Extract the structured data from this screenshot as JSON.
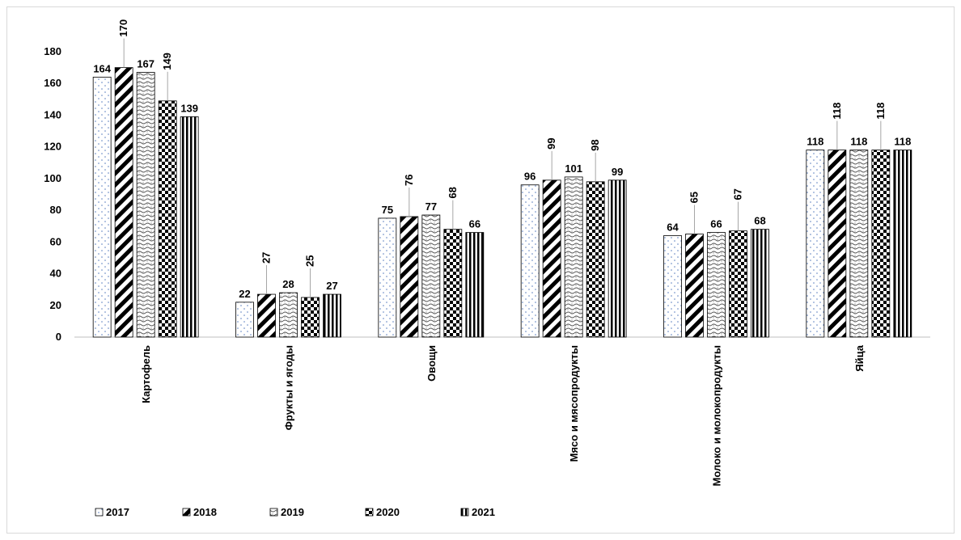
{
  "chart_data": {
    "type": "bar",
    "title": "",
    "xlabel": "",
    "ylabel": "",
    "ylim": [
      0,
      180
    ],
    "yticks": [
      0,
      20,
      40,
      60,
      80,
      100,
      120,
      140,
      160,
      180
    ],
    "grid": false,
    "legend_position": "bottom-left",
    "categories": [
      "Картофель",
      "Фрукты и ягоды",
      "Овощи",
      "Мясо и мясопродукты",
      "Молоко и молокопродукты",
      "Яйца"
    ],
    "series": [
      {
        "name": "2017",
        "pattern": "dots",
        "values": [
          164,
          22,
          75,
          96,
          64,
          118
        ]
      },
      {
        "name": "2018",
        "pattern": "wide-diagonal",
        "values": [
          170,
          27,
          76,
          99,
          65,
          118
        ]
      },
      {
        "name": "2019",
        "pattern": "wave",
        "values": [
          167,
          28,
          77,
          101,
          66,
          118
        ]
      },
      {
        "name": "2020",
        "pattern": "checker",
        "values": [
          149,
          25,
          68,
          98,
          67,
          118
        ]
      },
      {
        "name": "2021",
        "pattern": "vertical-stripes",
        "values": [
          139,
          27,
          66,
          99,
          68,
          118
        ]
      }
    ],
    "colors": {
      "ink": "#000000",
      "dots": "#5b7fbf",
      "frame": "#d9d9d9"
    }
  }
}
